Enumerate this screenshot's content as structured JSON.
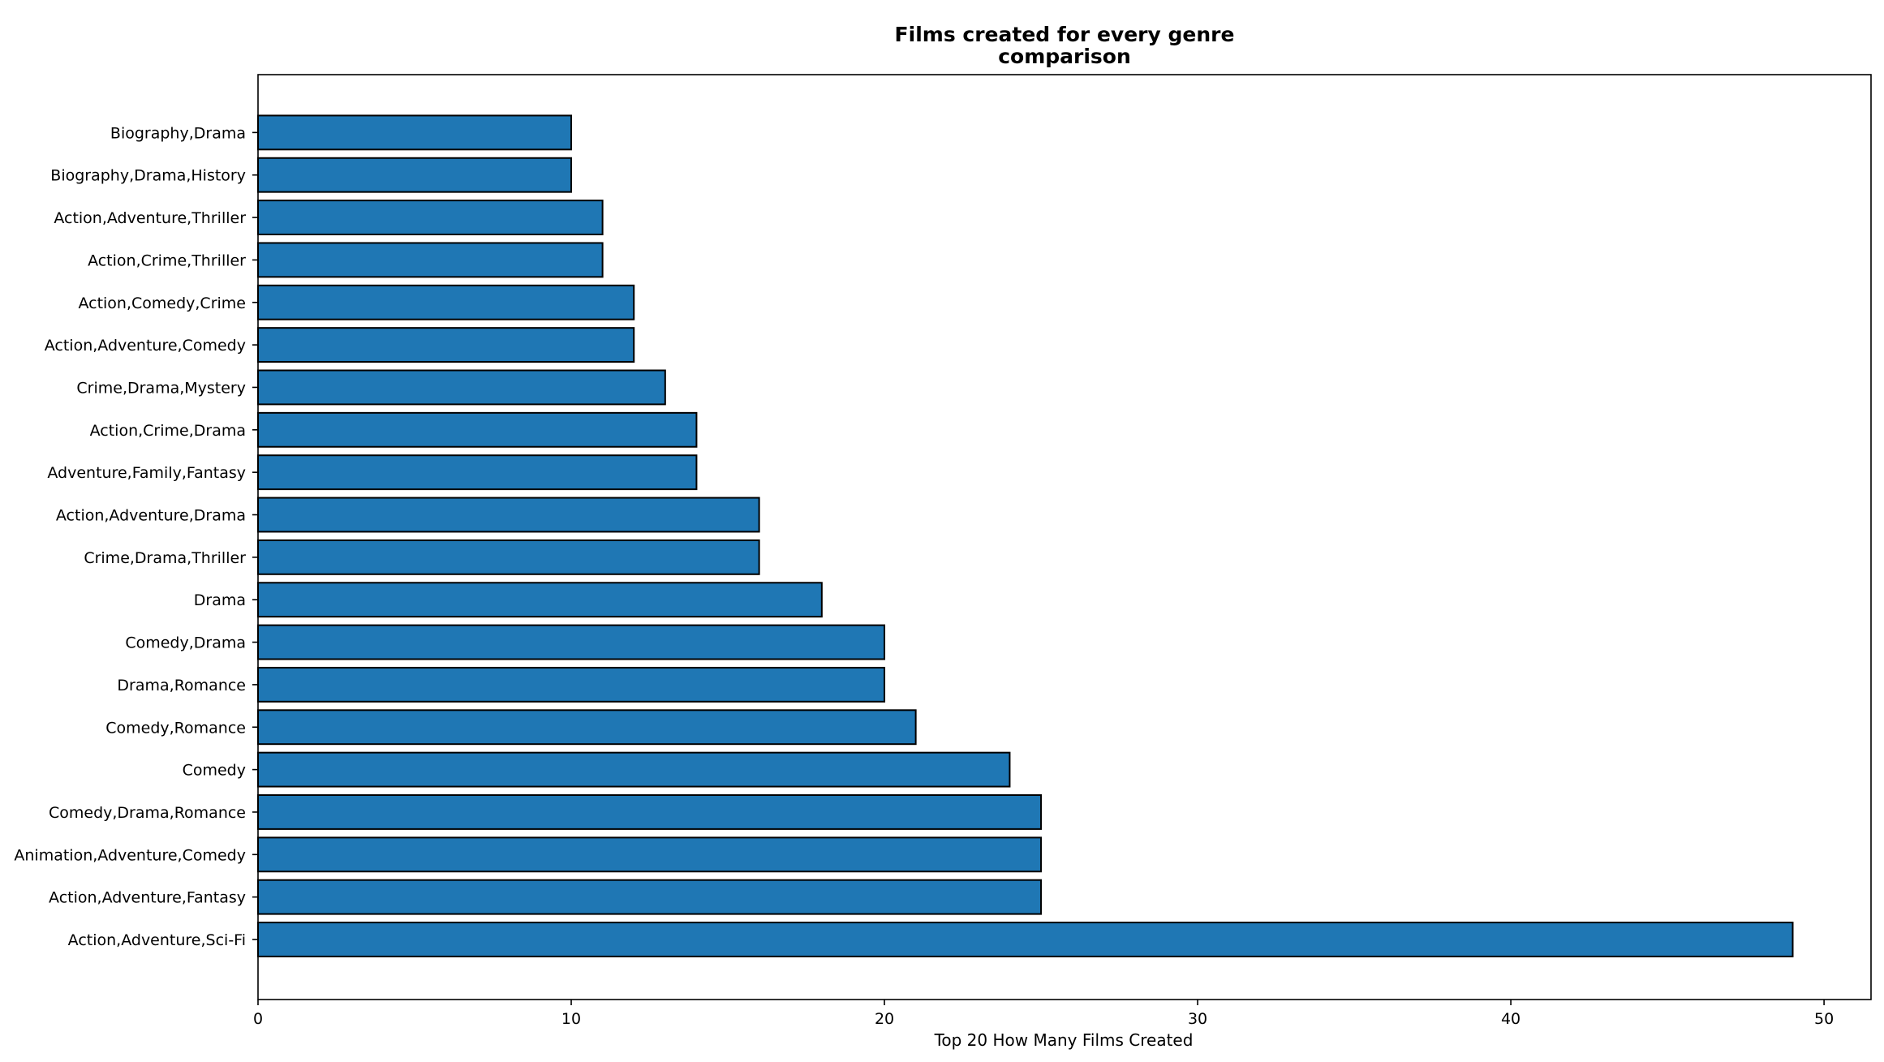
{
  "chart_data": {
    "type": "bar",
    "orientation": "horizontal",
    "title": "Films created for every genre\ncomparison",
    "title_lines": [
      "Films created for every genre",
      "comparison"
    ],
    "xlabel": "Top 20 How Many Films Created",
    "ylabel": "",
    "xlim": [
      0,
      51.5
    ],
    "xticks": [
      0,
      10,
      20,
      30,
      40,
      50
    ],
    "xtick_labels": [
      "0",
      "10",
      "20",
      "30",
      "40",
      "50"
    ],
    "grid": false,
    "bar_color": "#1f77b4",
    "edge_color": "#000000",
    "categories": [
      "Action,Adventure,Sci-Fi",
      "Action,Adventure,Fantasy",
      "Animation,Adventure,Comedy",
      "Comedy,Drama,Romance",
      "Comedy",
      "Comedy,Romance",
      "Drama,Romance",
      "Comedy,Drama",
      "Drama",
      "Crime,Drama,Thriller",
      "Action,Adventure,Drama",
      "Adventure,Family,Fantasy",
      "Action,Crime,Drama",
      "Crime,Drama,Mystery",
      "Action,Adventure,Comedy",
      "Action,Comedy,Crime",
      "Action,Crime,Thriller",
      "Action,Adventure,Thriller",
      "Biography,Drama,History",
      "Biography,Drama"
    ],
    "values": [
      49,
      25,
      25,
      25,
      24,
      21,
      20,
      20,
      18,
      16,
      16,
      14,
      14,
      13,
      12,
      12,
      11,
      11,
      10,
      10
    ]
  }
}
